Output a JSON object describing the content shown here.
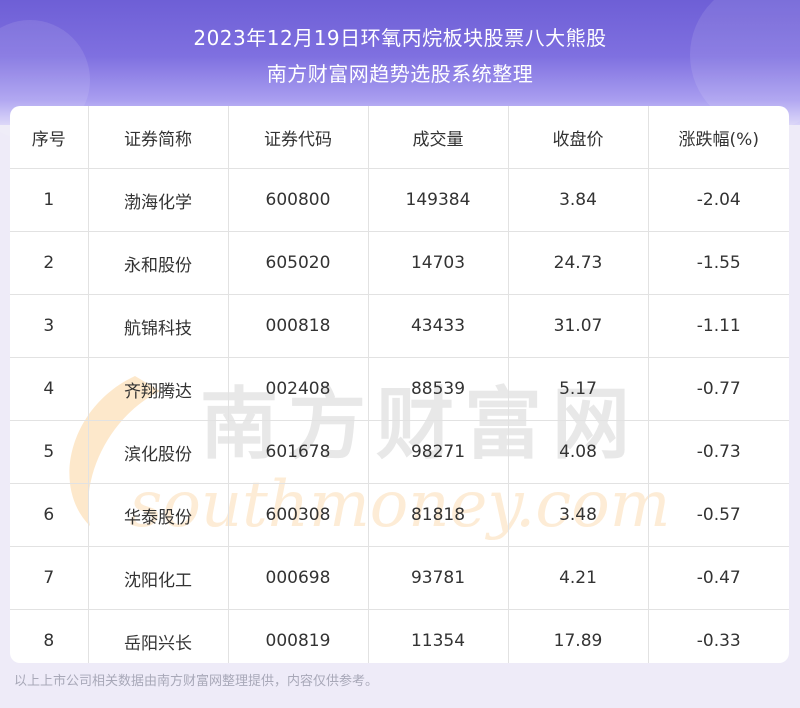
{
  "header": {
    "title_line1": "2023年12月19日环氧丙烷板块股票八大熊股",
    "title_line2": "南方财富网趋势选股系统整理"
  },
  "table": {
    "columns": [
      "序号",
      "证券简称",
      "证券代码",
      "成交量",
      "收盘价",
      "涨跌幅(%)"
    ],
    "rows": [
      [
        "1",
        "渤海化学",
        "600800",
        "149384",
        "3.84",
        "-2.04"
      ],
      [
        "2",
        "永和股份",
        "605020",
        "14703",
        "24.73",
        "-1.55"
      ],
      [
        "3",
        "航锦科技",
        "000818",
        "43433",
        "31.07",
        "-1.11"
      ],
      [
        "4",
        "齐翔腾达",
        "002408",
        "88539",
        "5.17",
        "-0.77"
      ],
      [
        "5",
        "滨化股份",
        "601678",
        "98271",
        "4.08",
        "-0.73"
      ],
      [
        "6",
        "华泰股份",
        "600308",
        "81818",
        "3.48",
        "-0.57"
      ],
      [
        "7",
        "沈阳化工",
        "000698",
        "93781",
        "4.21",
        "-0.47"
      ],
      [
        "8",
        "岳阳兴长",
        "000819",
        "11354",
        "17.89",
        "-0.33"
      ]
    ]
  },
  "watermark": {
    "cn": "南方财富网",
    "en": "southmoney.com"
  },
  "footer": {
    "note": "以上上市公司相关数据由南方财富网整理提供，内容仅供参考。"
  },
  "colors": {
    "header_top": "#6e5fd6",
    "header_bottom": "#d9d4f8",
    "page_background": "#eeebf8",
    "watermark_orange": "#f7b25a"
  }
}
